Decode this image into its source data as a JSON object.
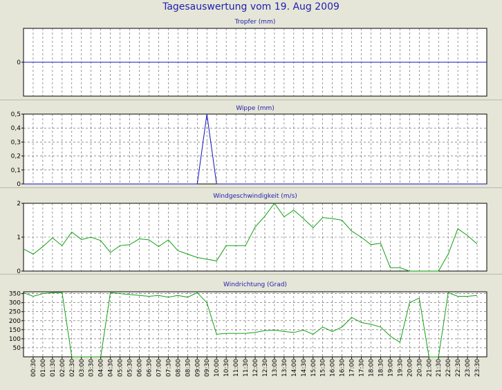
{
  "title": "Tagesauswertung vom 19. Aug 2009",
  "colors": {
    "background": "#e6e6d8",
    "plot_area": "#ffffff",
    "title_text": "#2020b0",
    "rain_series": "#1010c0",
    "wind_series": "#10a010",
    "grid": "#000000"
  },
  "time_labels": [
    "00:30",
    "01:00",
    "01:30",
    "02:00",
    "02:30",
    "03:00",
    "03:30",
    "04:00",
    "04:30",
    "05:00",
    "05:30",
    "06:00",
    "06:30",
    "07:00",
    "07:30",
    "08:00",
    "08:30",
    "09:00",
    "09:30",
    "10:00",
    "10:30",
    "11:00",
    "11:30",
    "12:00",
    "12:30",
    "13:00",
    "13:30",
    "14:00",
    "14:30",
    "15:00",
    "15:30",
    "16:00",
    "16:30",
    "17:00",
    "17:30",
    "18:00",
    "18:30",
    "19:00",
    "19:30",
    "20:00",
    "20:30",
    "21:00",
    "21:30",
    "22:00",
    "22:30",
    "23:00",
    "23:30"
  ],
  "chart_data": [
    {
      "type": "line",
      "title": "Tropfer (mm)",
      "ylim": [
        -1,
        1
      ],
      "yticks": [
        {
          "v": 0,
          "label": "0"
        }
      ],
      "grid": true,
      "series": [
        {
          "values": [
            0,
            0,
            0,
            0,
            0,
            0,
            0,
            0,
            0,
            0,
            0,
            0,
            0,
            0,
            0,
            0,
            0,
            0,
            0,
            0,
            0,
            0,
            0,
            0,
            0,
            0,
            0,
            0,
            0,
            0,
            0,
            0,
            0,
            0,
            0,
            0,
            0,
            0,
            0,
            0,
            0,
            0,
            0,
            0,
            0,
            0,
            0,
            0,
            0
          ]
        }
      ]
    },
    {
      "type": "line",
      "title": "Wippe (mm)",
      "ylim": [
        0,
        0.5
      ],
      "yticks": [
        {
          "v": 0,
          "label": "0"
        },
        {
          "v": 0.1,
          "label": "0,1"
        },
        {
          "v": 0.2,
          "label": "0,2"
        },
        {
          "v": 0.3,
          "label": "0,3"
        },
        {
          "v": 0.4,
          "label": "0,4"
        },
        {
          "v": 0.5,
          "label": "0,5"
        }
      ],
      "grid": true,
      "series": [
        {
          "values": [
            0,
            0,
            0,
            0,
            0,
            0,
            0,
            0,
            0,
            0,
            0,
            0,
            0,
            0,
            0,
            0,
            0,
            0,
            0,
            0.5,
            0,
            0,
            0,
            0,
            0,
            0,
            0,
            0,
            0,
            0,
            0,
            0,
            0,
            0,
            0,
            0,
            0,
            0,
            0,
            0,
            0,
            0,
            0,
            0,
            0,
            0,
            0,
            0,
            0
          ]
        }
      ]
    },
    {
      "type": "line",
      "title": "Windgeschwindigkeit (m/s)",
      "ylim": [
        0,
        2
      ],
      "yticks": [
        {
          "v": 0,
          "label": "0"
        },
        {
          "v": 1,
          "label": "1"
        },
        {
          "v": 2,
          "label": "2"
        }
      ],
      "grid": true,
      "series": [
        {
          "values": [
            0.65,
            0.5,
            0.72,
            0.98,
            0.75,
            1.15,
            0.93,
            1.0,
            0.9,
            0.55,
            0.75,
            0.78,
            0.95,
            0.92,
            0.72,
            0.92,
            0.6,
            0.5,
            0.4,
            0.35,
            0.3,
            0.75,
            0.75,
            0.75,
            1.3,
            1.62,
            2.0,
            1.6,
            1.8,
            1.55,
            1.28,
            1.58,
            1.55,
            1.5,
            1.18,
            1.0,
            0.78,
            0.82,
            0.1,
            0.1,
            0.0,
            0.0,
            0.0,
            0.0,
            0.5,
            1.25,
            1.05,
            0.8
          ]
        }
      ]
    },
    {
      "type": "line",
      "title": "Windrichtung (Grad)",
      "ylim": [
        0,
        360
      ],
      "yticks": [
        {
          "v": 50,
          "label": "50"
        },
        {
          "v": 100,
          "label": "100"
        },
        {
          "v": 150,
          "label": "150"
        },
        {
          "v": 200,
          "label": "200"
        },
        {
          "v": 250,
          "label": "250"
        },
        {
          "v": 300,
          "label": "300"
        },
        {
          "v": 350,
          "label": "350"
        }
      ],
      "grid": true,
      "series": [
        {
          "values": [
            355,
            335,
            350,
            355,
            355,
            0,
            0,
            0,
            0,
            355,
            350,
            345,
            340,
            335,
            340,
            330,
            340,
            330,
            355,
            300,
            125,
            130,
            130,
            130,
            135,
            145,
            148,
            140,
            135,
            148,
            125,
            165,
            140,
            165,
            218,
            190,
            180,
            165,
            115,
            80,
            300,
            325,
            0,
            0,
            355,
            335,
            335,
            340
          ]
        }
      ]
    }
  ]
}
